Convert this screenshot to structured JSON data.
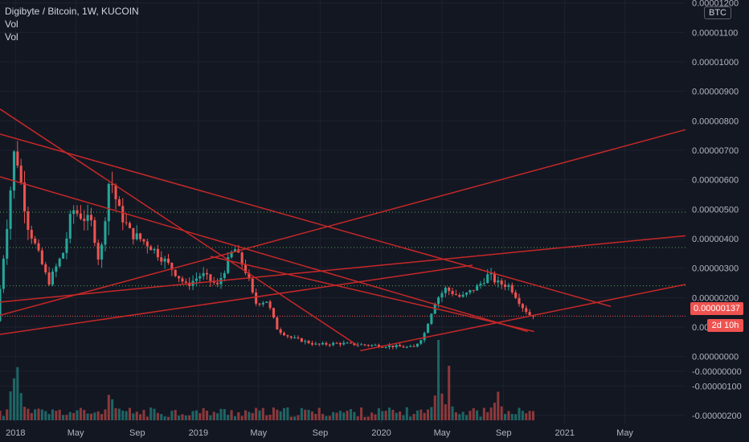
{
  "legend": {
    "title": "Digibyte / Bitcoin, 1W, KUCOIN",
    "line2": "Vol",
    "line3": "Vol"
  },
  "currency_label": "BTC",
  "badges": {
    "last_price": "0.00000137",
    "countdown": "2d 10h"
  },
  "colors": {
    "background": "#131722",
    "up": "#26a69a",
    "down": "#ef5350",
    "trendline": "#c62828",
    "dotted_level": "#4caf50",
    "last_price_line": "#ef5350",
    "axis_text": "#b2b5be"
  },
  "chart_data": {
    "type": "candlestick",
    "title": "Digibyte / Bitcoin, 1W, KUCOIN",
    "y_axis": {
      "ticks": [
        "0.00001200",
        "0.00001100",
        "0.00001000",
        "0.00000900",
        "0.00000800",
        "0.00000700",
        "0.00000600",
        "0.00000500",
        "0.00000400",
        "0.00000300",
        "0.00000200",
        "0.00000100",
        "0.00000000",
        "-0.00000000",
        "-0.00000100",
        "-0.00000200"
      ],
      "range": [
        -2.3e-06,
        1.21e-05
      ]
    },
    "x_axis": {
      "ticks": [
        "2018",
        "May",
        "Sep",
        "2019",
        "May",
        "Sep",
        "2020",
        "May",
        "Sep",
        "2021",
        "May"
      ],
      "range": [
        "2017-12-01",
        "2021-08-30"
      ]
    },
    "last_price": 1.37e-06,
    "horizontal_levels": [
      4.9e-06,
      3.7e-06,
      2.4e-06
    ],
    "trendlines": [
      {
        "from": [
          "2017-12-01",
          8.4e-06
        ],
        "to": [
          "2019-11-17",
          3.5e-07
        ]
      },
      {
        "from": [
          "2017-12-01",
          7.55e-06
        ],
        "to": [
          "2021-04-03",
          1.7e-06
        ]
      },
      {
        "from": [
          "2017-12-01",
          6.1e-06
        ],
        "to": [
          "2020-10-19",
          8.5e-07
        ]
      },
      {
        "from": [
          "2017-12-01",
          1.4e-06
        ],
        "to": [
          "2021-08-30",
          7.7e-06
        ]
      },
      {
        "from": [
          "2017-12-01",
          1.85e-06
        ],
        "to": [
          "2021-08-30",
          4.1e-06
        ]
      },
      {
        "from": [
          "2017-12-01",
          7.5e-07
        ],
        "to": [
          "2020-07-01",
          3.1e-06
        ]
      },
      {
        "from": [
          "2019-11-20",
          2e-07
        ],
        "to": [
          "2021-08-30",
          2.45e-06
        ]
      },
      {
        "from": [
          "2019-01-25",
          3.4e-06
        ],
        "to": [
          "2020-11-01",
          8.5e-07
        ]
      }
    ],
    "anchors": [
      [
        "2017-12-01",
        1.2e-06
      ],
      [
        "2017-12-22",
        4.5e-06
      ],
      [
        "2018-01-07",
        7.2e-06
      ],
      [
        "2018-01-15",
        6.3e-06
      ],
      [
        "2018-02-01",
        4.5e-06
      ],
      [
        "2018-03-15",
        2.5e-06
      ],
      [
        "2018-04-15",
        3.6e-06
      ],
      [
        "2018-05-01",
        5e-06
      ],
      [
        "2018-06-10",
        4.5e-06
      ],
      [
        "2018-06-25",
        3.1e-06
      ],
      [
        "2018-07-15",
        6.2e-06
      ],
      [
        "2018-08-01",
        5e-06
      ],
      [
        "2018-08-25",
        4.2e-06
      ],
      [
        "2018-10-01",
        3.8e-06
      ],
      [
        "2018-11-05",
        3.2e-06
      ],
      [
        "2018-12-15",
        2.4e-06
      ],
      [
        "2019-01-15",
        2.8e-06
      ],
      [
        "2019-02-15",
        2.4e-06
      ],
      [
        "2019-03-20",
        3.7e-06
      ],
      [
        "2019-04-15",
        2.8e-06
      ],
      [
        "2019-05-01",
        1.8e-06
      ],
      [
        "2019-05-25",
        1.9e-06
      ],
      [
        "2019-06-15",
        9e-07
      ],
      [
        "2019-07-10",
        6.5e-07
      ],
      [
        "2019-09-01",
        4e-07
      ],
      [
        "2019-10-15",
        4.5e-07
      ],
      [
        "2019-12-01",
        4e-07
      ],
      [
        "2020-02-01",
        3.5e-07
      ],
      [
        "2020-03-12",
        3e-07
      ],
      [
        "2020-04-01",
        7e-07
      ],
      [
        "2020-04-25",
        1.9e-06
      ],
      [
        "2020-05-15",
        2.3e-06
      ],
      [
        "2020-06-15",
        2e-06
      ],
      [
        "2020-07-20",
        2.4e-06
      ],
      [
        "2020-08-10",
        2.8e-06
      ],
      [
        "2020-08-25",
        2.5e-06
      ],
      [
        "2020-09-20",
        2.4e-06
      ],
      [
        "2020-10-15",
        1.7e-06
      ],
      [
        "2020-10-31",
        1.4e-06
      ]
    ],
    "volume": {
      "spikes": [
        {
          "date": "2018-01-07",
          "relative": 1.0
        },
        {
          "date": "2017-12-28",
          "relative": 0.85
        },
        {
          "date": "2018-07-10",
          "relative": 0.7
        },
        {
          "date": "2020-04-24",
          "relative": 1.15
        },
        {
          "date": "2020-05-15",
          "relative": 0.75
        },
        {
          "date": "2020-08-20",
          "relative": 0.55
        }
      ],
      "baseline_relative": 0.12
    }
  }
}
